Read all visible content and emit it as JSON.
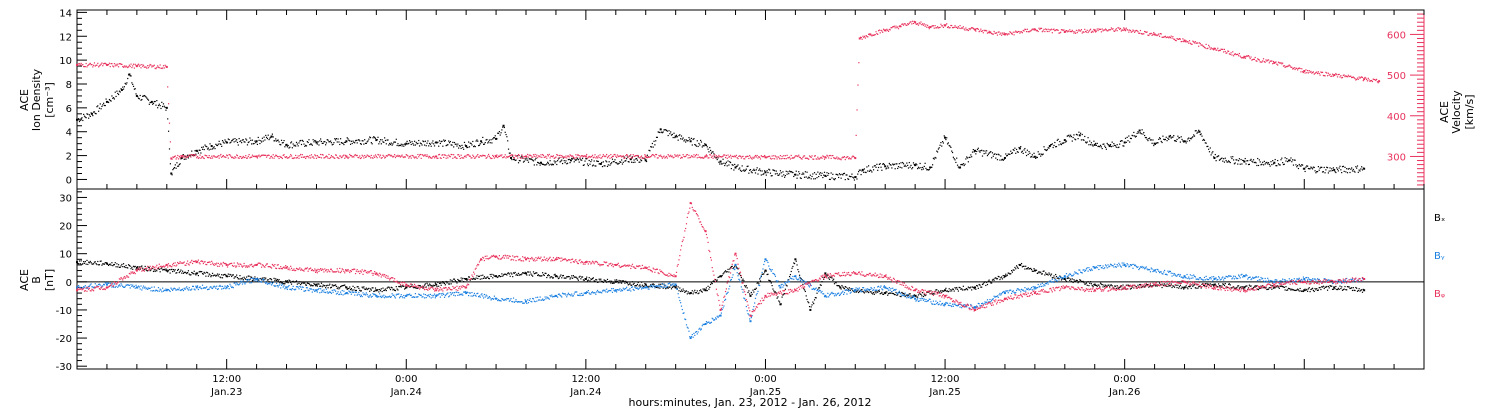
{
  "figure": {
    "time_axis": {
      "tick_labels": [
        {
          "time": "12:00",
          "date": "Jan.23"
        },
        {
          "time": "0:00",
          "date": "Jan.24"
        },
        {
          "time": "12:00",
          "date": "Jan.24"
        },
        {
          "time": "0:00",
          "date": "Jan.25"
        },
        {
          "time": "12:00",
          "date": "Jan.25"
        },
        {
          "time": "0:00",
          "date": "Jan.26"
        }
      ],
      "title": "hours:minutes, Jan. 23, 2012 - Jan. 26, 2012"
    }
  },
  "colors": {
    "density": "#000000",
    "velocity": "#e8325c",
    "bx": "#000000",
    "by": "#1a7fe0",
    "bz": "#e8325c",
    "axis": "#000000"
  },
  "chart_data": [
    {
      "type": "scatter",
      "panel": "top",
      "ylabel_left": [
        "ACE",
        "Ion Density",
        "[cm⁻³]"
      ],
      "ylabel_right": [
        "ACE",
        "Velocity",
        "[km/s]"
      ],
      "x_unit": "hours since 2012-01-23 00:00",
      "xlim": [
        2,
        92
      ],
      "ylim_left": [
        -0.8,
        14.2
      ],
      "yticks_left": [
        "0",
        "2",
        "4",
        "6",
        "8",
        "10",
        "12",
        "14"
      ],
      "ylim_right": [
        220,
        660
      ],
      "yticks_right": [
        "300",
        "400",
        "500",
        "600"
      ],
      "series": [
        {
          "key": "density",
          "axis": "left",
          "points": [
            [
              2,
              5.0
            ],
            [
              3,
              5.5
            ],
            [
              4,
              6.5
            ],
            [
              5,
              7.5
            ],
            [
              5.5,
              8.8
            ],
            [
              6,
              7.0
            ],
            [
              7,
              6.5
            ],
            [
              8,
              6.0
            ],
            [
              8.3,
              0.5
            ],
            [
              9,
              1.8
            ],
            [
              10,
              2.4
            ],
            [
              11,
              2.8
            ],
            [
              12,
              3.1
            ],
            [
              14,
              3.2
            ],
            [
              15,
              3.6
            ],
            [
              16,
              2.9
            ],
            [
              18,
              3.1
            ],
            [
              20,
              3.2
            ],
            [
              22,
              3.3
            ],
            [
              24,
              3.0
            ],
            [
              26,
              3.1
            ],
            [
              28,
              2.8
            ],
            [
              29,
              3.2
            ],
            [
              30,
              3.4
            ],
            [
              30.5,
              4.5
            ],
            [
              31,
              1.8
            ],
            [
              33,
              1.4
            ],
            [
              35,
              1.6
            ],
            [
              37,
              1.3
            ],
            [
              39,
              1.7
            ],
            [
              40,
              1.6
            ],
            [
              41,
              4.2
            ],
            [
              42,
              3.6
            ],
            [
              43,
              3.2
            ],
            [
              44,
              2.9
            ],
            [
              45,
              1.5
            ],
            [
              46,
              1.0
            ],
            [
              48,
              0.6
            ],
            [
              50,
              0.4
            ],
            [
              52,
              0.3
            ],
            [
              54,
              0.2
            ],
            [
              54.5,
              0.8
            ],
            [
              56,
              1.1
            ],
            [
              58,
              1.2
            ],
            [
              59,
              1.0
            ],
            [
              60,
              3.5
            ],
            [
              61,
              1.0
            ],
            [
              62,
              2.4
            ],
            [
              64,
              1.8
            ],
            [
              65,
              2.6
            ],
            [
              66,
              1.9
            ],
            [
              67,
              2.8
            ],
            [
              68,
              3.3
            ],
            [
              69,
              3.7
            ],
            [
              70,
              2.9
            ],
            [
              71,
              2.8
            ],
            [
              72,
              3.1
            ],
            [
              73,
              4.1
            ],
            [
              74,
              3.0
            ],
            [
              75,
              3.6
            ],
            [
              76,
              3.2
            ],
            [
              77,
              4.0
            ],
            [
              78,
              1.8
            ],
            [
              80,
              1.5
            ],
            [
              82,
              1.4
            ],
            [
              83,
              1.6
            ],
            [
              84,
              0.9
            ],
            [
              86,
              0.8
            ],
            [
              88,
              0.9
            ]
          ]
        },
        {
          "key": "velocity",
          "axis": "right",
          "points": [
            [
              2,
              525
            ],
            [
              4,
              525
            ],
            [
              6,
              522
            ],
            [
              8,
              520
            ],
            [
              8.3,
              295
            ],
            [
              9,
              300
            ],
            [
              14,
              300
            ],
            [
              20,
              300
            ],
            [
              26,
              300
            ],
            [
              30,
              300
            ],
            [
              32,
              300
            ],
            [
              36,
              300
            ],
            [
              40,
              300
            ],
            [
              44,
              300
            ],
            [
              48,
              298
            ],
            [
              52,
              298
            ],
            [
              54,
              296
            ],
            [
              54.3,
              590
            ],
            [
              55,
              600
            ],
            [
              56,
              610
            ],
            [
              57,
              620
            ],
            [
              58,
              630
            ],
            [
              59,
              618
            ],
            [
              60,
              622
            ],
            [
              62,
              612
            ],
            [
              63,
              605
            ],
            [
              64,
              600
            ],
            [
              66,
              612
            ],
            [
              68,
              606
            ],
            [
              70,
              610
            ],
            [
              72,
              612
            ],
            [
              74,
              600
            ],
            [
              76,
              585
            ],
            [
              78,
              565
            ],
            [
              80,
              545
            ],
            [
              82,
              530
            ],
            [
              84,
              510
            ],
            [
              86,
              500
            ],
            [
              88,
              490
            ],
            [
              89,
              485
            ]
          ]
        }
      ]
    },
    {
      "type": "scatter",
      "panel": "bottom",
      "ylabel_left": [
        "ACE",
        "B",
        "[nT]"
      ],
      "x_unit": "hours since 2012-01-23 00:00",
      "xlim": [
        2,
        92
      ],
      "ylim": [
        -31,
        33
      ],
      "yticks": [
        "-30",
        "-20",
        "-10",
        "0",
        "10",
        "20",
        "30"
      ],
      "zero_line": true,
      "legend": {
        "position": "right",
        "entries": [
          "Bₓ",
          "Bᵧ",
          "Bᵩ"
        ]
      },
      "series": [
        {
          "key": "bx",
          "name": "Bₓ",
          "points": [
            [
              2,
              7
            ],
            [
              4,
              6.5
            ],
            [
              6,
              5
            ],
            [
              8,
              4
            ],
            [
              10,
              3
            ],
            [
              12,
              2
            ],
            [
              14,
              1
            ],
            [
              16,
              0
            ],
            [
              18,
              -1
            ],
            [
              20,
              -2
            ],
            [
              22,
              -3
            ],
            [
              24,
              -2
            ],
            [
              26,
              -1
            ],
            [
              28,
              1
            ],
            [
              30,
              2
            ],
            [
              32,
              3
            ],
            [
              34,
              2
            ],
            [
              36,
              1
            ],
            [
              38,
              0
            ],
            [
              40,
              -1
            ],
            [
              42,
              -2
            ],
            [
              43,
              -4
            ],
            [
              44,
              -3
            ],
            [
              45,
              2
            ],
            [
              46,
              6
            ],
            [
              47,
              -5
            ],
            [
              48,
              4
            ],
            [
              49,
              -8
            ],
            [
              50,
              8
            ],
            [
              51,
              -10
            ],
            [
              52,
              3
            ],
            [
              53,
              -2
            ],
            [
              54,
              -3
            ],
            [
              56,
              -4
            ],
            [
              58,
              -5
            ],
            [
              60,
              -3
            ],
            [
              62,
              -2
            ],
            [
              64,
              2
            ],
            [
              65,
              6
            ],
            [
              66,
              4
            ],
            [
              68,
              1
            ],
            [
              70,
              -1
            ],
            [
              72,
              -2
            ],
            [
              74,
              -1
            ],
            [
              76,
              -2
            ],
            [
              78,
              -1
            ],
            [
              80,
              -2
            ],
            [
              82,
              -2
            ],
            [
              84,
              -3
            ],
            [
              86,
              -2
            ],
            [
              88,
              -3
            ]
          ]
        },
        {
          "key": "by",
          "name": "Bᵧ",
          "points": [
            [
              2,
              -2
            ],
            [
              4,
              -1
            ],
            [
              6,
              -2
            ],
            [
              8,
              -3
            ],
            [
              10,
              -2
            ],
            [
              12,
              -2
            ],
            [
              14,
              1
            ],
            [
              16,
              -2
            ],
            [
              18,
              -3
            ],
            [
              20,
              -4
            ],
            [
              22,
              -5
            ],
            [
              24,
              -5
            ],
            [
              26,
              -5
            ],
            [
              28,
              -4
            ],
            [
              30,
              -6
            ],
            [
              32,
              -7
            ],
            [
              34,
              -5
            ],
            [
              36,
              -4
            ],
            [
              38,
              -3
            ],
            [
              40,
              -2
            ],
            [
              42,
              -1
            ],
            [
              43,
              -20
            ],
            [
              44,
              -15
            ],
            [
              45,
              -12
            ],
            [
              46,
              6
            ],
            [
              47,
              -14
            ],
            [
              48,
              8
            ],
            [
              49,
              -2
            ],
            [
              50,
              2
            ],
            [
              52,
              -5
            ],
            [
              54,
              -3
            ],
            [
              56,
              -2
            ],
            [
              58,
              -6
            ],
            [
              60,
              -8
            ],
            [
              62,
              -9
            ],
            [
              64,
              -4
            ],
            [
              66,
              -2
            ],
            [
              68,
              2
            ],
            [
              70,
              5
            ],
            [
              72,
              6
            ],
            [
              74,
              4
            ],
            [
              76,
              2
            ],
            [
              78,
              1
            ],
            [
              80,
              2
            ],
            [
              82,
              0
            ],
            [
              84,
              1
            ],
            [
              86,
              0
            ],
            [
              88,
              1
            ]
          ]
        },
        {
          "key": "bz",
          "name": "Bᵩ",
          "points": [
            [
              2,
              -3
            ],
            [
              4,
              -2
            ],
            [
              6,
              4
            ],
            [
              8,
              6
            ],
            [
              10,
              7
            ],
            [
              12,
              6
            ],
            [
              14,
              6
            ],
            [
              16,
              5
            ],
            [
              18,
              4
            ],
            [
              20,
              4
            ],
            [
              22,
              3
            ],
            [
              24,
              -1
            ],
            [
              26,
              -3
            ],
            [
              28,
              -2
            ],
            [
              29,
              8
            ],
            [
              30,
              9
            ],
            [
              32,
              8
            ],
            [
              34,
              8
            ],
            [
              36,
              7
            ],
            [
              38,
              6
            ],
            [
              40,
              5
            ],
            [
              42,
              2
            ],
            [
              43,
              28
            ],
            [
              44,
              18
            ],
            [
              45,
              -10
            ],
            [
              46,
              10
            ],
            [
              47,
              -12
            ],
            [
              48,
              -5
            ],
            [
              50,
              -3
            ],
            [
              52,
              2
            ],
            [
              54,
              3
            ],
            [
              56,
              2
            ],
            [
              58,
              -3
            ],
            [
              60,
              -5
            ],
            [
              62,
              -10
            ],
            [
              64,
              -6
            ],
            [
              66,
              -4
            ],
            [
              68,
              -2
            ],
            [
              70,
              -3
            ],
            [
              72,
              -2
            ],
            [
              74,
              -1
            ],
            [
              76,
              0
            ],
            [
              78,
              -2
            ],
            [
              80,
              -3
            ],
            [
              82,
              -1
            ],
            [
              84,
              0
            ],
            [
              86,
              0
            ],
            [
              88,
              1
            ]
          ]
        }
      ]
    }
  ]
}
